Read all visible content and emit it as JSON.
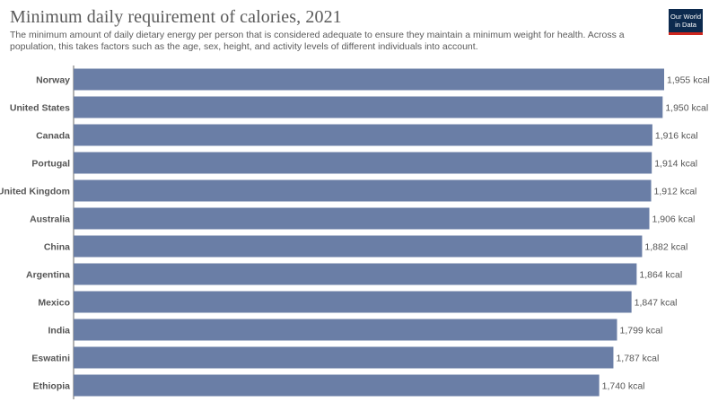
{
  "header": {
    "title": "Minimum daily requirement of calories, 2021",
    "subtitle": "The minimum amount of daily dietary energy per person that is considered adequate to ensure they maintain a minimum weight for health. Across a population, this takes factors such as the age, sex, height, and activity levels of different individuals into account."
  },
  "logo": {
    "line1": "Our World",
    "line2": "in Data"
  },
  "colors": {
    "bar": "#6a7ea6",
    "title": "#5a5a5a",
    "text": "#555555",
    "axis": "#666666"
  },
  "chart_data": {
    "type": "bar",
    "orientation": "horizontal",
    "title": "Minimum daily requirement of calories, 2021",
    "categories": [
      "Norway",
      "United States",
      "Canada",
      "Portugal",
      "United Kingdom",
      "Australia",
      "China",
      "Argentina",
      "Mexico",
      "India",
      "Eswatini",
      "Ethiopia"
    ],
    "values": [
      1955,
      1950,
      1916,
      1914,
      1912,
      1906,
      1882,
      1864,
      1847,
      1799,
      1787,
      1740
    ],
    "value_labels": [
      "1,955 kcal",
      "1,950 kcal",
      "1,916 kcal",
      "1,914 kcal",
      "1,912 kcal",
      "1,906 kcal",
      "1,882 kcal",
      "1,864 kcal",
      "1,847 kcal",
      "1,799 kcal",
      "1,787 kcal",
      "1,740 kcal"
    ],
    "unit": "kcal",
    "xlim": [
      0,
      1955
    ],
    "grid": false,
    "legend": "none"
  }
}
